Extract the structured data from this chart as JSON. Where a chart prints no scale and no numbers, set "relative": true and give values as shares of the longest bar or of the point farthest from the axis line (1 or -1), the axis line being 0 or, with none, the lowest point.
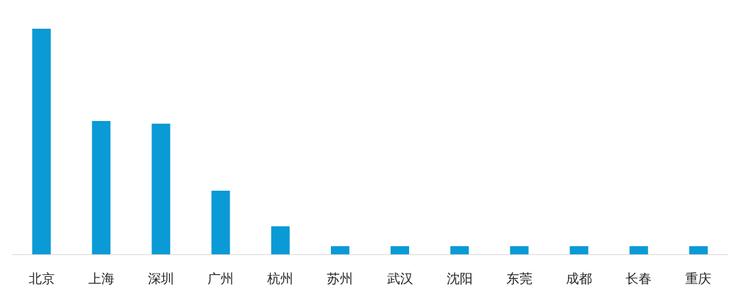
{
  "chart_data": {
    "type": "bar",
    "relative": true,
    "color": "#0a9ad6",
    "categories": [
      "北京",
      "上海",
      "深圳",
      "广州",
      "杭州",
      "苏州",
      "武汉",
      "沈阳",
      "东莞",
      "成都",
      "长春",
      "重庆"
    ],
    "values": [
      1,
      0.591,
      0.579,
      0.282,
      0.124,
      0.036,
      0.036,
      0.036,
      0.036,
      0.036,
      0.036,
      0.036
    ]
  }
}
